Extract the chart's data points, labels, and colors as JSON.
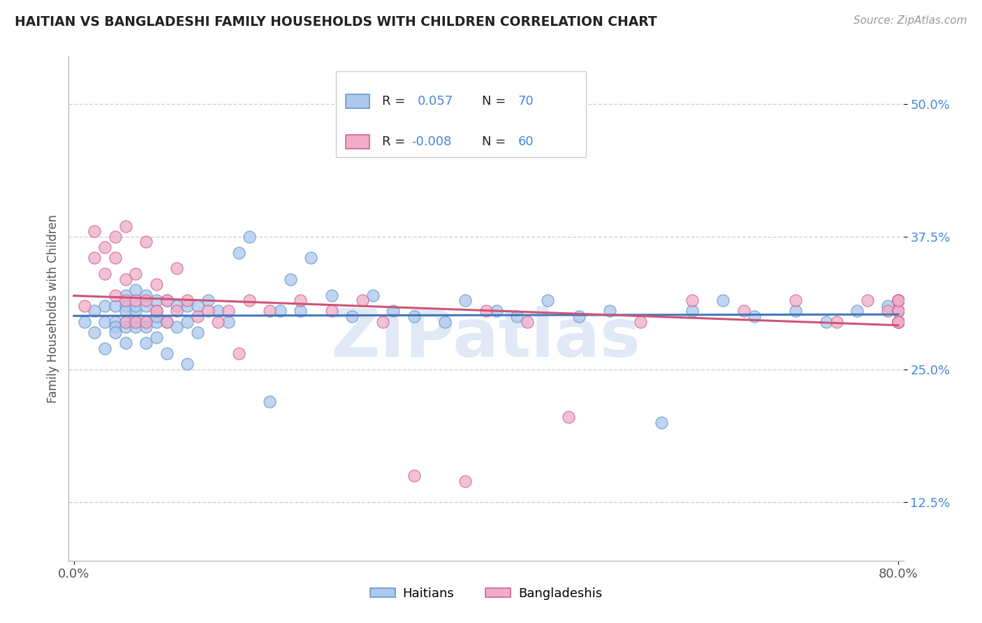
{
  "title": "HAITIAN VS BANGLADESHI FAMILY HOUSEHOLDS WITH CHILDREN CORRELATION CHART",
  "source": "Source: ZipAtlas.com",
  "ylabel": "Family Households with Children",
  "ytick_labels": [
    "12.5%",
    "25.0%",
    "37.5%",
    "50.0%"
  ],
  "ytick_values": [
    0.125,
    0.25,
    0.375,
    0.5
  ],
  "xlim": [
    -0.005,
    0.805
  ],
  "ylim": [
    0.07,
    0.545
  ],
  "legend_labels": [
    "Haitians",
    "Bangladeshis"
  ],
  "haitian_color": "#adc8ed",
  "bangladeshi_color": "#f0adc8",
  "haitian_edge_color": "#6699cc",
  "bangladeshi_edge_color": "#cc6699",
  "haitian_line_color": "#4477bb",
  "bangladeshi_line_color": "#cc5577",
  "background_color": "#ffffff",
  "grid_color": "#d0d0d0",
  "watermark": "ZIPatlas",
  "label_color": "#4488dd",
  "haitian_x": [
    0.01,
    0.02,
    0.02,
    0.03,
    0.03,
    0.03,
    0.04,
    0.04,
    0.04,
    0.04,
    0.05,
    0.05,
    0.05,
    0.05,
    0.05,
    0.05,
    0.06,
    0.06,
    0.06,
    0.06,
    0.06,
    0.07,
    0.07,
    0.07,
    0.07,
    0.07,
    0.08,
    0.08,
    0.08,
    0.08,
    0.09,
    0.09,
    0.09,
    0.1,
    0.1,
    0.11,
    0.11,
    0.11,
    0.12,
    0.12,
    0.13,
    0.14,
    0.15,
    0.16,
    0.17,
    0.19,
    0.2,
    0.21,
    0.22,
    0.23,
    0.25,
    0.27,
    0.29,
    0.31,
    0.33,
    0.36,
    0.38,
    0.41,
    0.43,
    0.46,
    0.49,
    0.52,
    0.57,
    0.6,
    0.63,
    0.66,
    0.7,
    0.73,
    0.76,
    0.79
  ],
  "haitian_y": [
    0.295,
    0.285,
    0.305,
    0.31,
    0.295,
    0.27,
    0.295,
    0.31,
    0.29,
    0.285,
    0.295,
    0.31,
    0.29,
    0.32,
    0.305,
    0.275,
    0.295,
    0.305,
    0.325,
    0.31,
    0.29,
    0.275,
    0.295,
    0.31,
    0.29,
    0.32,
    0.28,
    0.295,
    0.315,
    0.3,
    0.265,
    0.295,
    0.315,
    0.29,
    0.31,
    0.255,
    0.295,
    0.31,
    0.285,
    0.31,
    0.315,
    0.305,
    0.295,
    0.36,
    0.375,
    0.22,
    0.305,
    0.335,
    0.305,
    0.355,
    0.32,
    0.3,
    0.32,
    0.305,
    0.3,
    0.295,
    0.315,
    0.305,
    0.3,
    0.315,
    0.3,
    0.305,
    0.2,
    0.305,
    0.315,
    0.3,
    0.305,
    0.295,
    0.305,
    0.31
  ],
  "bangladeshi_x": [
    0.01,
    0.02,
    0.02,
    0.03,
    0.03,
    0.04,
    0.04,
    0.04,
    0.05,
    0.05,
    0.05,
    0.05,
    0.06,
    0.06,
    0.06,
    0.07,
    0.07,
    0.07,
    0.08,
    0.08,
    0.08,
    0.09,
    0.09,
    0.1,
    0.1,
    0.11,
    0.12,
    0.13,
    0.14,
    0.15,
    0.16,
    0.17,
    0.19,
    0.22,
    0.25,
    0.28,
    0.3,
    0.33,
    0.38,
    0.4,
    0.44,
    0.48,
    0.55,
    0.6,
    0.65,
    0.7,
    0.74,
    0.77,
    0.79,
    0.8,
    0.8,
    0.8,
    0.8,
    0.8,
    0.8,
    0.8,
    0.8,
    0.8,
    0.8,
    0.8
  ],
  "bangladeshi_y": [
    0.31,
    0.38,
    0.355,
    0.365,
    0.34,
    0.355,
    0.375,
    0.32,
    0.315,
    0.335,
    0.295,
    0.385,
    0.295,
    0.315,
    0.34,
    0.295,
    0.315,
    0.37,
    0.305,
    0.33,
    0.305,
    0.295,
    0.315,
    0.305,
    0.345,
    0.315,
    0.3,
    0.305,
    0.295,
    0.305,
    0.265,
    0.315,
    0.305,
    0.315,
    0.305,
    0.315,
    0.295,
    0.15,
    0.145,
    0.305,
    0.295,
    0.205,
    0.295,
    0.315,
    0.305,
    0.315,
    0.295,
    0.315,
    0.305,
    0.315,
    0.295,
    0.305,
    0.315,
    0.295,
    0.305,
    0.315,
    0.295,
    0.305,
    0.315,
    0.295
  ]
}
